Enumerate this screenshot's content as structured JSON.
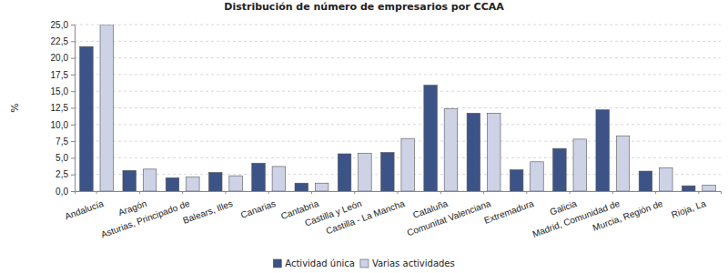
{
  "chart_data": {
    "type": "bar",
    "title": "Distribución de número de empresarios por CCAA",
    "y_label": "%",
    "categories": [
      "Andalucía",
      "Aragón",
      "Asturias, Principado de",
      "Balears, Illes",
      "Canarias",
      "Cantabria",
      "Castilla y León",
      "Castilla - La Mancha",
      "Cataluña",
      "Comunitat Valenciana",
      "Extremadura",
      "Galicia",
      "Madrid, Comunidad de",
      "Murcia, Región de",
      "Rioja, La"
    ],
    "series": [
      {
        "name": "Actividad única",
        "color": "#3c5387",
        "values": [
          21.7,
          3.1,
          2.0,
          2.8,
          4.2,
          1.2,
          5.6,
          5.8,
          15.9,
          11.7,
          3.2,
          6.4,
          12.2,
          3.0,
          0.8
        ]
      },
      {
        "name": "Varias actividades",
        "color": "#cdd2e6",
        "values": [
          25.0,
          3.3,
          2.1,
          2.3,
          3.7,
          1.2,
          5.7,
          7.9,
          12.4,
          11.7,
          4.4,
          7.8,
          8.3,
          3.5,
          0.9
        ]
      }
    ],
    "ylim": [
      0,
      25
    ],
    "yticks": [
      {
        "value": 0,
        "label": "0,0"
      },
      {
        "value": 2.5,
        "label": "2,5"
      },
      {
        "value": 5,
        "label": "5,0"
      },
      {
        "value": 7.5,
        "label": "7,5"
      },
      {
        "value": 10,
        "label": "10,0"
      },
      {
        "value": 12.5,
        "label": "12,5"
      },
      {
        "value": 15,
        "label": "15,0"
      },
      {
        "value": 17.5,
        "label": "17,5"
      },
      {
        "value": 20,
        "label": "20,0"
      },
      {
        "value": 22.5,
        "label": "22,5"
      },
      {
        "value": 25,
        "label": "25,0"
      }
    ],
    "grid": true,
    "legend": "bottom"
  }
}
